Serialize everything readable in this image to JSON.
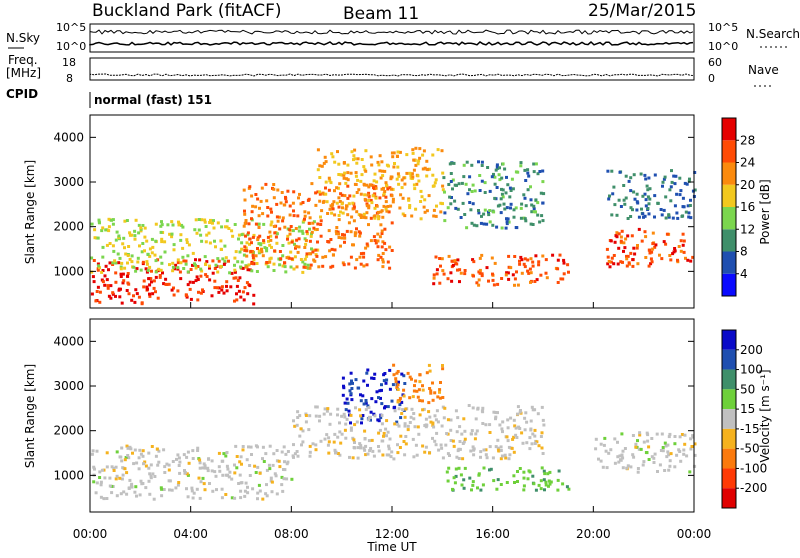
{
  "header": {
    "radar": "Buckland Park (fitACF)",
    "beam": "Beam 11",
    "date": "25/Mar/2015"
  },
  "noise_panel": {
    "left_label": "N.Sky",
    "left_ticks": [
      "10^5",
      "10^0"
    ],
    "right_ticks": [
      "10^5",
      "10^0"
    ],
    "right_label": "N.Search"
  },
  "freq_panel": {
    "left_label_top": "Freq.",
    "left_label_bottom": "[MHz]",
    "left_ticks": [
      "18",
      "8"
    ],
    "right_ticks": [
      "60",
      "0"
    ],
    "right_label": "Nave"
  },
  "cpid": {
    "label": "CPID",
    "value": "normal (fast) 151"
  },
  "range_axis": {
    "label": "Slant Range [km]",
    "ticks": [
      "1000",
      "2000",
      "3000",
      "4000"
    ]
  },
  "time_axis": {
    "label": "Time UT",
    "ticks": [
      "00:00",
      "04:00",
      "08:00",
      "12:00",
      "16:00",
      "20:00",
      "00:00"
    ]
  },
  "power_colorbar": {
    "label": "Power [dB]",
    "ticks": [
      "4",
      "8",
      "12",
      "16",
      "20",
      "24",
      "28"
    ],
    "colors": [
      "#0a0aff",
      "#1f4fb0",
      "#3f8f6a",
      "#7bd64e",
      "#f2c81e",
      "#fb8a0d",
      "#ff4b05",
      "#e50000"
    ]
  },
  "velocity_colorbar": {
    "label": "Velocity [m s⁻¹]",
    "ticks": [
      "200",
      "100",
      "50",
      "15",
      "-15",
      "-50",
      "-100",
      "-200"
    ],
    "colors": [
      "#0a0ac8",
      "#1f4fb0",
      "#3f8f6a",
      "#6ed03a",
      "#c0c0c0",
      "#f5b21e",
      "#fb7a0d",
      "#ff3a05",
      "#e00000"
    ]
  },
  "chart_data": {
    "type": "heatmap",
    "x_range": [
      "00:00",
      "24:00"
    ],
    "y_range_km": [
      180,
      4500
    ],
    "panels": [
      "Power [dB]",
      "Velocity [m s⁻¹]"
    ],
    "power_echo_regions": [
      {
        "t_start": 0.0,
        "t_end": 6.5,
        "range_min_km": 300,
        "range_max_km": 1300,
        "power_db": 28
      },
      {
        "t_start": 0.0,
        "t_end": 9.0,
        "range_min_km": 1000,
        "range_max_km": 2200,
        "power_db": 16
      },
      {
        "t_start": 6.0,
        "t_end": 12.0,
        "range_min_km": 1100,
        "range_max_km": 3000,
        "power_db": 24
      },
      {
        "t_start": 9.0,
        "t_end": 14.0,
        "range_min_km": 2200,
        "range_max_km": 3800,
        "power_db": 20
      },
      {
        "t_start": 13.5,
        "t_end": 19.0,
        "range_min_km": 700,
        "range_max_km": 1400,
        "power_db": 26
      },
      {
        "t_start": 14.0,
        "t_end": 18.0,
        "range_min_km": 2000,
        "range_max_km": 3500,
        "power_db": 10
      },
      {
        "t_start": 20.5,
        "t_end": 24.0,
        "range_min_km": 1100,
        "range_max_km": 2000,
        "power_db": 26
      },
      {
        "t_start": 20.5,
        "t_end": 24.0,
        "range_min_km": 2200,
        "range_max_km": 3300,
        "power_db": 8
      }
    ],
    "velocity_echo_regions": [
      {
        "t_start": 0.0,
        "t_end": 8.0,
        "range_min_km": 500,
        "range_max_km": 1700,
        "velocity_ms": 0
      },
      {
        "t_start": 10.0,
        "t_end": 12.5,
        "range_min_km": 2200,
        "range_max_km": 3400,
        "velocity_ms": 200
      },
      {
        "t_start": 12.0,
        "t_end": 14.0,
        "range_min_km": 2600,
        "range_max_km": 3500,
        "velocity_ms": -60
      },
      {
        "t_start": 8.0,
        "t_end": 18.0,
        "range_min_km": 1400,
        "range_max_km": 2600,
        "velocity_ms": -5
      },
      {
        "t_start": 14.0,
        "t_end": 19.0,
        "range_min_km": 700,
        "range_max_km": 1200,
        "velocity_ms": 40
      },
      {
        "t_start": 20.0,
        "t_end": 24.0,
        "range_min_km": 1100,
        "range_max_km": 2000,
        "velocity_ms": 0
      }
    ]
  }
}
